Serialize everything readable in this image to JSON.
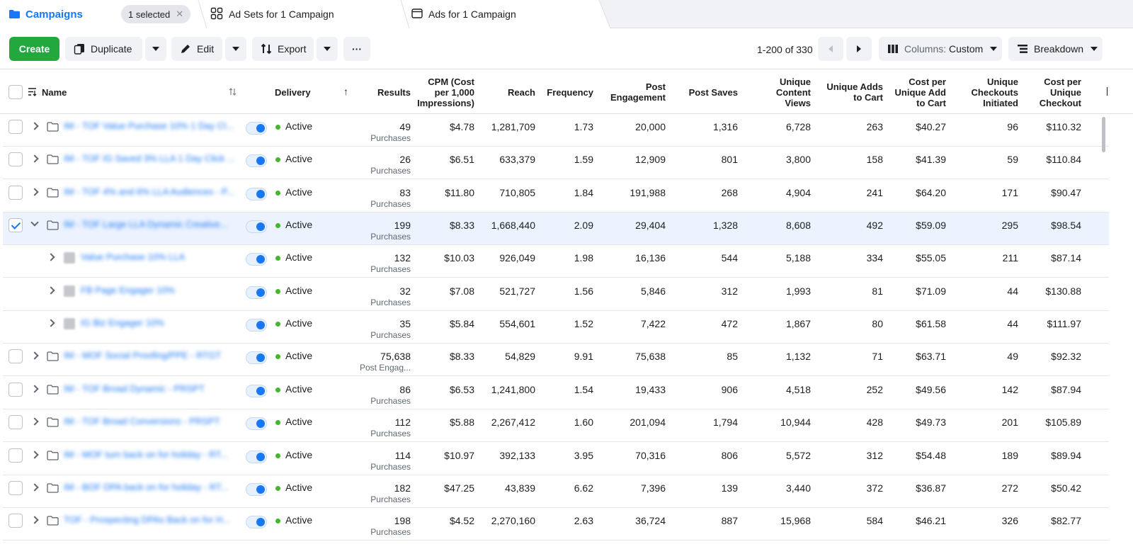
{
  "tabs": {
    "campaigns": "Campaigns",
    "selected_pill": "1 selected",
    "adsets": "Ad Sets for 1 Campaign",
    "ads": "Ads for 1 Campaign"
  },
  "toolbar": {
    "create": "Create",
    "duplicate": "Duplicate",
    "edit": "Edit",
    "export": "Export",
    "more": "···",
    "pagination": "1-200 of 330",
    "columns_prefix": "Columns:",
    "columns_value": "Custom",
    "breakdown": "Breakdown"
  },
  "headers": {
    "name": "Name",
    "delivery": "Delivery",
    "results": "Results",
    "cpm": [
      "CPM (Cost",
      "per 1,000",
      "Impressions)"
    ],
    "reach": "Reach",
    "frequency": "Frequency",
    "post_engagement": [
      "Post",
      "Engagement"
    ],
    "post_saves": "Post Saves",
    "unique_content_views": [
      "Unique",
      "Content",
      "Views"
    ],
    "unique_adds_to_cart": [
      "Unique Adds",
      "to Cart"
    ],
    "cost_per_unique_add": [
      "Cost per",
      "Unique Add",
      "to Cart"
    ],
    "unique_checkouts": [
      "Unique",
      "Checkouts",
      "Initiated"
    ],
    "cost_per_unique_checkout": [
      "Cost per",
      "Unique",
      "Checkout"
    ]
  },
  "rows": [
    {
      "kind": "campaign",
      "checked": false,
      "expanded": false,
      "name": "IM - TOF Value Purchase 10% 1 Day Cl...",
      "status": "Active",
      "results": "49",
      "result_type": "Purchases",
      "cpm": "$4.78",
      "reach": "1,281,709",
      "frequency": "1.73",
      "post_engagement": "20,000",
      "post_saves": "1,316",
      "ucv": "6,728",
      "uatc": "263",
      "cpuatc": "$40.27",
      "uci": "96",
      "cpuc": "$110.32"
    },
    {
      "kind": "campaign",
      "checked": false,
      "expanded": false,
      "name": "IM - TOF IG Saved 3% LLA 1 Day Click ...",
      "status": "Active",
      "results": "26",
      "result_type": "Purchases",
      "cpm": "$6.51",
      "reach": "633,379",
      "frequency": "1.59",
      "post_engagement": "12,909",
      "post_saves": "801",
      "ucv": "3,800",
      "uatc": "158",
      "cpuatc": "$41.39",
      "uci": "59",
      "cpuc": "$110.84"
    },
    {
      "kind": "campaign",
      "checked": false,
      "expanded": false,
      "name": "IM - TOF 4% and 6% LLA Audiences - P...",
      "status": "Active",
      "results": "83",
      "result_type": "Purchases",
      "cpm": "$11.80",
      "reach": "710,805",
      "frequency": "1.84",
      "post_engagement": "191,988",
      "post_saves": "268",
      "ucv": "4,904",
      "uatc": "241",
      "cpuatc": "$64.20",
      "uci": "171",
      "cpuc": "$90.47"
    },
    {
      "kind": "campaign",
      "checked": true,
      "expanded": true,
      "name": "IM - TOF Large LLA Dynamic Creative...",
      "status": "Active",
      "results": "199",
      "result_type": "Purchases",
      "cpm": "$8.33",
      "reach": "1,668,440",
      "frequency": "2.09",
      "post_engagement": "29,404",
      "post_saves": "1,328",
      "ucv": "8,608",
      "uatc": "492",
      "cpuatc": "$59.09",
      "uci": "295",
      "cpuc": "$98.54"
    },
    {
      "kind": "adset",
      "checked": false,
      "expanded": false,
      "name": "Value Purchase 10% LLA",
      "status": "Active",
      "results": "132",
      "result_type": "Purchases",
      "cpm": "$10.03",
      "reach": "926,049",
      "frequency": "1.98",
      "post_engagement": "16,136",
      "post_saves": "544",
      "ucv": "5,188",
      "uatc": "334",
      "cpuatc": "$55.05",
      "uci": "211",
      "cpuc": "$87.14"
    },
    {
      "kind": "adset",
      "checked": false,
      "expanded": false,
      "name": "FB Page Engager 10%",
      "status": "Active",
      "results": "32",
      "result_type": "Purchases",
      "cpm": "$7.08",
      "reach": "521,727",
      "frequency": "1.56",
      "post_engagement": "5,846",
      "post_saves": "312",
      "ucv": "1,993",
      "uatc": "81",
      "cpuatc": "$71.09",
      "uci": "44",
      "cpuc": "$130.88"
    },
    {
      "kind": "adset",
      "checked": false,
      "expanded": false,
      "name": "IG Biz Engager 10%",
      "status": "Active",
      "results": "35",
      "result_type": "Purchases",
      "cpm": "$5.84",
      "reach": "554,601",
      "frequency": "1.52",
      "post_engagement": "7,422",
      "post_saves": "472",
      "ucv": "1,867",
      "uatc": "80",
      "cpuatc": "$61.58",
      "uci": "44",
      "cpuc": "$111.97"
    },
    {
      "kind": "campaign",
      "checked": false,
      "expanded": false,
      "name": "IM - MOF Social Proofing/PPE - RTGT",
      "status": "Active",
      "results": "75,638",
      "result_type": "Post Engag...",
      "cpm": "$8.33",
      "reach": "54,829",
      "frequency": "9.91",
      "post_engagement": "75,638",
      "post_saves": "85",
      "ucv": "1,132",
      "uatc": "71",
      "cpuatc": "$63.71",
      "uci": "49",
      "cpuc": "$92.32"
    },
    {
      "kind": "campaign",
      "checked": false,
      "expanded": false,
      "name": "IM - TOF Broad Dynamic - PRSPT",
      "status": "Active",
      "results": "86",
      "result_type": "Purchases",
      "cpm": "$6.53",
      "reach": "1,241,800",
      "frequency": "1.54",
      "post_engagement": "19,433",
      "post_saves": "906",
      "ucv": "4,518",
      "uatc": "252",
      "cpuatc": "$49.56",
      "uci": "142",
      "cpuc": "$87.94"
    },
    {
      "kind": "campaign",
      "checked": false,
      "expanded": false,
      "name": "IM - TOF Broad Conversions - PRSPT",
      "status": "Active",
      "results": "112",
      "result_type": "Purchases",
      "cpm": "$5.88",
      "reach": "2,267,412",
      "frequency": "1.60",
      "post_engagement": "201,094",
      "post_saves": "1,794",
      "ucv": "10,944",
      "uatc": "428",
      "cpuatc": "$49.73",
      "uci": "201",
      "cpuc": "$105.89"
    },
    {
      "kind": "campaign",
      "checked": false,
      "expanded": false,
      "name": "IM - MOF turn back on for holiday - RT...",
      "status": "Active",
      "results": "114",
      "result_type": "Purchases",
      "cpm": "$10.97",
      "reach": "392,133",
      "frequency": "3.95",
      "post_engagement": "70,316",
      "post_saves": "806",
      "ucv": "5,572",
      "uatc": "312",
      "cpuatc": "$54.48",
      "uci": "189",
      "cpuc": "$89.94"
    },
    {
      "kind": "campaign",
      "checked": false,
      "expanded": false,
      "name": "IM - BOF DPA back on for holiday - RT...",
      "status": "Active",
      "results": "182",
      "result_type": "Purchases",
      "cpm": "$47.25",
      "reach": "43,839",
      "frequency": "6.62",
      "post_engagement": "7,396",
      "post_saves": "139",
      "ucv": "3,440",
      "uatc": "372",
      "cpuatc": "$36.87",
      "uci": "272",
      "cpuc": "$50.42"
    },
    {
      "kind": "campaign",
      "checked": false,
      "expanded": false,
      "name": "TOF - Prospecting DPAs Back on for H...",
      "status": "Active",
      "results": "198",
      "result_type": "Purchases",
      "cpm": "$4.52",
      "reach": "2,270,160",
      "frequency": "2.63",
      "post_engagement": "36,724",
      "post_saves": "887",
      "ucv": "15,968",
      "uatc": "584",
      "cpuatc": "$46.21",
      "uci": "326",
      "cpuc": "$82.77"
    }
  ]
}
